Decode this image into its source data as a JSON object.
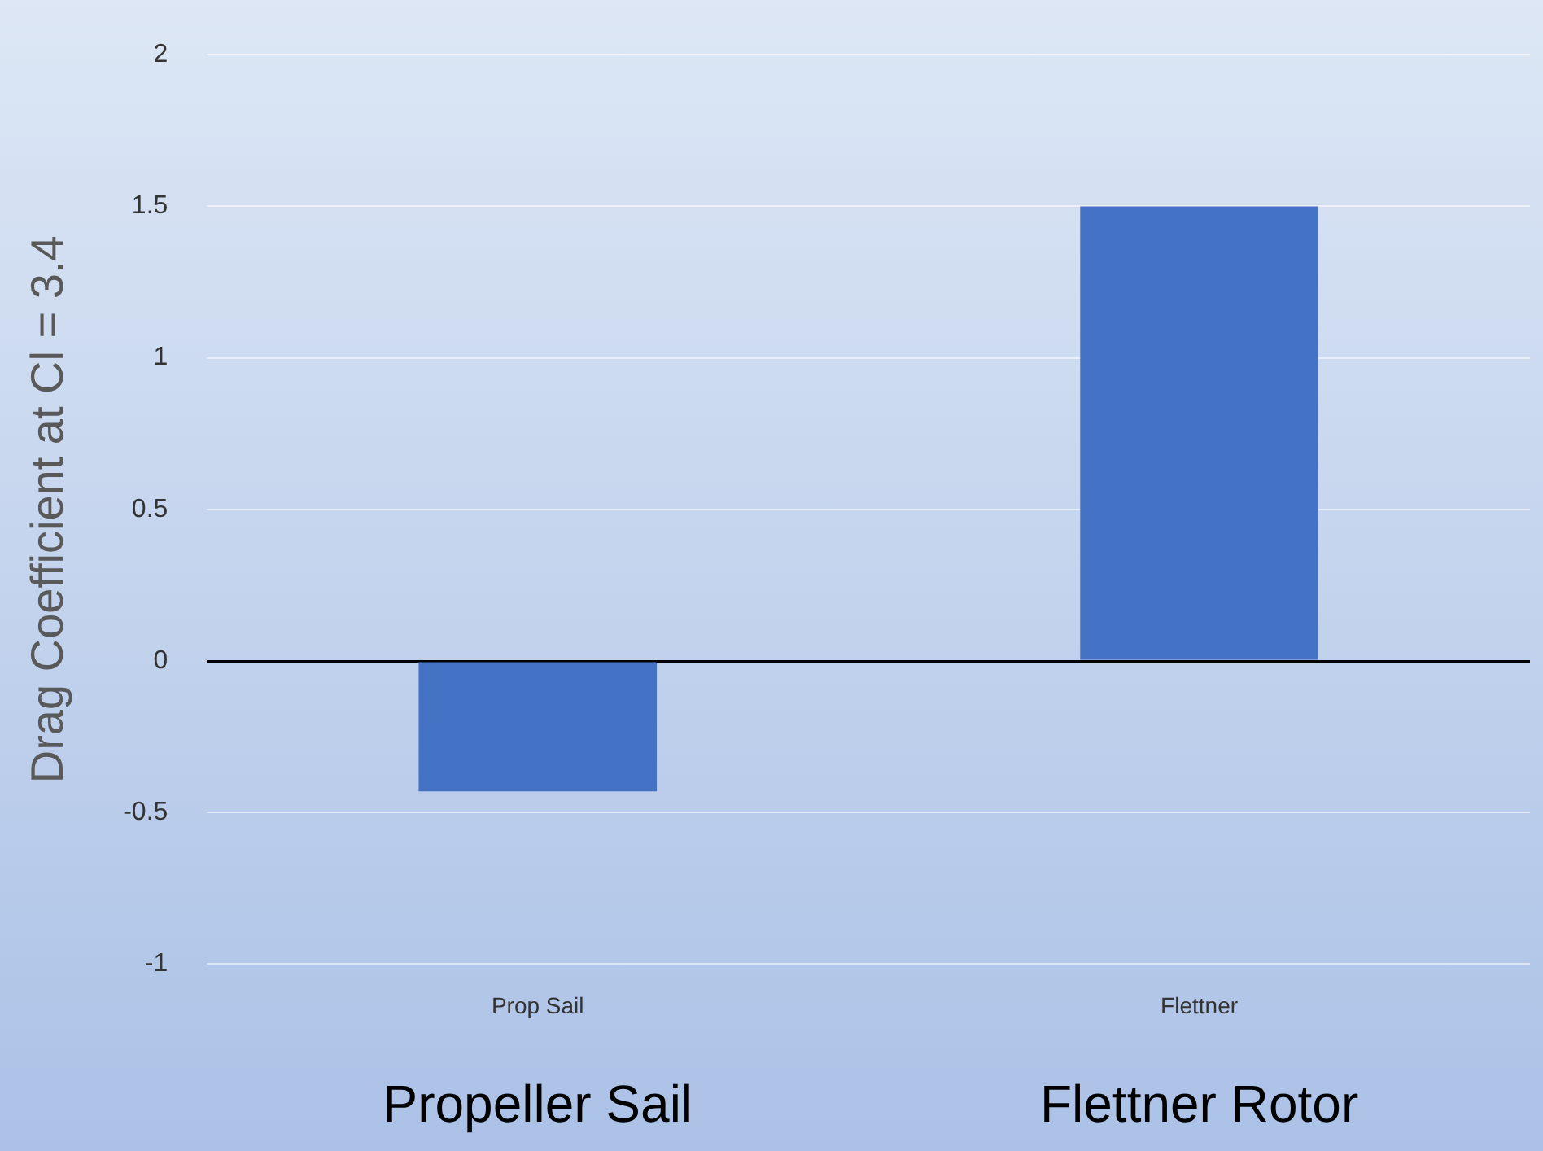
{
  "chart_data": {
    "type": "bar",
    "ylabel": "Drag Coefficient at Cl = 3.4",
    "categories": [
      "Prop Sail",
      "Flettner"
    ],
    "values": [
      -0.43,
      1.5
    ],
    "color": "#4472c4",
    "ylim": [
      -1,
      2
    ],
    "yticks": [
      -1,
      -0.5,
      0,
      0.5,
      1,
      1.5,
      2
    ],
    "grid": "y",
    "legend": false,
    "annotations": [
      "Propeller Sail",
      "Flettner Rotor"
    ]
  }
}
